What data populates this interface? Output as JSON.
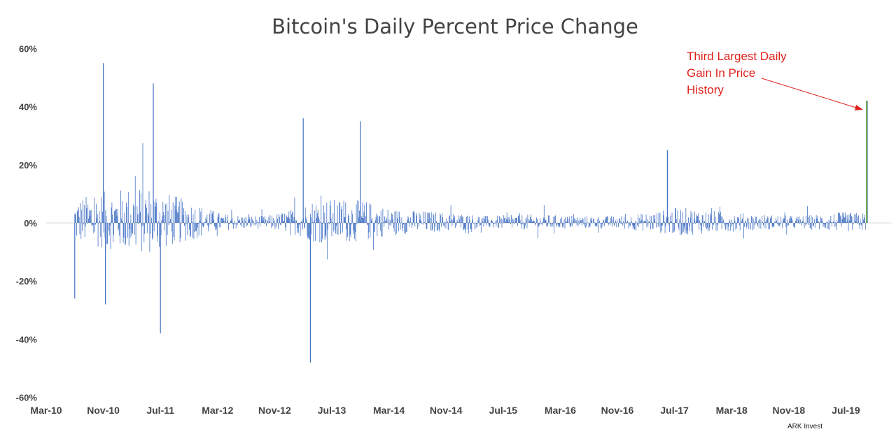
{
  "chart_data": {
    "type": "bar",
    "title": "Bitcoin's Daily Percent Price Change",
    "xlabel": "",
    "ylabel": "",
    "ylim": [
      -60,
      60
    ],
    "yticks": [
      "60%",
      "40%",
      "20%",
      "0%",
      "-20%",
      "-40%",
      "-60%"
    ],
    "xticks": [
      "Mar-10",
      "Nov-10",
      "Jul-11",
      "Mar-12",
      "Nov-12",
      "Jul-13",
      "Mar-14",
      "Nov-14",
      "Jul-15",
      "Mar-16",
      "Nov-16",
      "Jul-17",
      "Mar-18",
      "Nov-18",
      "Jul-19"
    ],
    "x_start": "Jul-10",
    "x_end": "Oct-19",
    "grid": false,
    "colors": {
      "bars": "#4472C4",
      "highlight": "#70AD47",
      "annotation": "#E0201B"
    },
    "notable_points": [
      {
        "date": "Jul-10",
        "value": -26
      },
      {
        "date": "Nov-10",
        "value": 55
      },
      {
        "date": "Nov-10",
        "value": -28
      },
      {
        "date": "Jun-11",
        "value": 48
      },
      {
        "date": "Jul-11",
        "value": -38
      },
      {
        "date": "Mar-13",
        "value": 36
      },
      {
        "date": "Apr-13",
        "value": -48
      },
      {
        "date": "Nov-13",
        "value": 35
      },
      {
        "date": "Jun-17",
        "value": 25
      },
      {
        "date": "Oct-19",
        "value": 42
      }
    ],
    "highlight": {
      "date": "Oct-19",
      "value": 42,
      "label": "Third Largest Daily Gain In Price History"
    },
    "annotation_lines": [
      "Third Largest Daily",
      "Gain In Price",
      "History"
    ],
    "credit": "ARK Invest"
  }
}
